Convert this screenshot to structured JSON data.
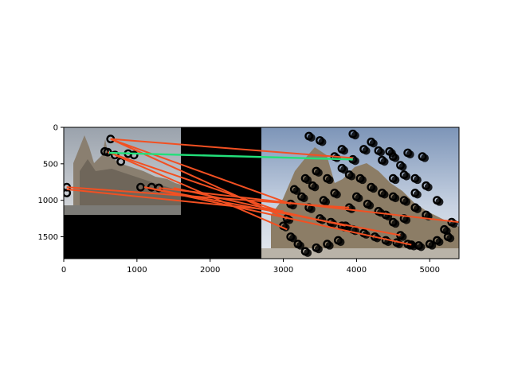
{
  "chart_data": {
    "type": "scatter",
    "description_kind": "feature-matching visualization over two stitched photos",
    "xlim": [
      0,
      5400
    ],
    "ylim": [
      1800,
      0
    ],
    "x_ticks": [
      "0",
      "1000",
      "2000",
      "3000",
      "4000",
      "5000"
    ],
    "y_ticks": [
      "0",
      "500",
      "1000",
      "1500"
    ],
    "x_tick_values": [
      0,
      1000,
      2000,
      3000,
      4000,
      5000
    ],
    "y_tick_values": [
      0,
      500,
      1000,
      1500
    ],
    "grid": false,
    "colors": {
      "match_line": "#f25022",
      "inlier_line": "#22e07a",
      "keypoint": "#000000",
      "separator": "#000000"
    },
    "left_image": {
      "x": [
        0,
        1600
      ],
      "y": [
        0,
        1200
      ]
    },
    "right_image": {
      "x": [
        2700,
        5400
      ],
      "y": [
        0,
        1800
      ]
    },
    "match_lines": [
      {
        "x1": 640,
        "y1": 160,
        "x2": 3950,
        "y2": 420
      },
      {
        "x1": 640,
        "y1": 160,
        "x2": 3050,
        "y2": 1250
      },
      {
        "x1": 640,
        "y1": 160,
        "x2": 3100,
        "y2": 1050
      },
      {
        "x1": 600,
        "y1": 340,
        "x2": 3100,
        "y2": 1200
      },
      {
        "x1": 700,
        "y1": 380,
        "x2": 3050,
        "y2": 1400
      },
      {
        "x1": 40,
        "y1": 820,
        "x2": 3900,
        "y2": 1100
      },
      {
        "x1": 40,
        "y1": 850,
        "x2": 3000,
        "y2": 1150
      },
      {
        "x1": 1100,
        "y1": 820,
        "x2": 4600,
        "y2": 1480
      },
      {
        "x1": 1100,
        "y1": 820,
        "x2": 4750,
        "y2": 1610
      },
      {
        "x1": 1300,
        "y1": 830,
        "x2": 5400,
        "y2": 1300
      },
      {
        "x1": 1500,
        "y1": 830,
        "x2": 3850,
        "y2": 1350
      }
    ],
    "inlier_lines": [
      {
        "x1": 620,
        "y1": 350,
        "x2": 3950,
        "y2": 440
      }
    ],
    "keypoints_left": [
      [
        640,
        160
      ],
      [
        600,
        340
      ],
      [
        700,
        380
      ],
      [
        780,
        470
      ],
      [
        960,
        380
      ],
      [
        1050,
        820
      ],
      [
        1200,
        820
      ],
      [
        1300,
        830
      ],
      [
        40,
        820
      ],
      [
        40,
        900
      ],
      [
        560,
        330
      ],
      [
        880,
        360
      ]
    ],
    "keypoints_right": [
      [
        3350,
        120
      ],
      [
        3500,
        180
      ],
      [
        3950,
        90
      ],
      [
        4100,
        300
      ],
      [
        4300,
        320
      ],
      [
        4450,
        330
      ],
      [
        4500,
        400
      ],
      [
        4600,
        520
      ],
      [
        4700,
        350
      ],
      [
        4900,
        400
      ],
      [
        3450,
        600
      ],
      [
        3600,
        700
      ],
      [
        3800,
        560
      ],
      [
        3900,
        650
      ],
      [
        4050,
        700
      ],
      [
        4200,
        820
      ],
      [
        4350,
        900
      ],
      [
        4500,
        950
      ],
      [
        4650,
        1000
      ],
      [
        4800,
        900
      ],
      [
        3150,
        850
      ],
      [
        3250,
        950
      ],
      [
        3350,
        1100
      ],
      [
        3500,
        1250
      ],
      [
        3650,
        1300
      ],
      [
        3800,
        1350
      ],
      [
        3950,
        1400
      ],
      [
        4100,
        1450
      ],
      [
        4250,
        1500
      ],
      [
        4400,
        1550
      ],
      [
        4550,
        1580
      ],
      [
        4700,
        1600
      ],
      [
        4850,
        1620
      ],
      [
        5000,
        1600
      ],
      [
        5100,
        1550
      ],
      [
        5250,
        1500
      ],
      [
        5300,
        1300
      ],
      [
        5200,
        1400
      ],
      [
        3000,
        1350
      ],
      [
        3100,
        1500
      ],
      [
        3200,
        1600
      ],
      [
        3300,
        1700
      ],
      [
        3450,
        1650
      ],
      [
        3600,
        1600
      ],
      [
        3750,
        1550
      ],
      [
        3050,
        1250
      ],
      [
        3100,
        1050
      ],
      [
        3900,
        1100
      ],
      [
        4600,
        1480
      ],
      [
        4750,
        1610
      ],
      [
        3850,
        1350
      ],
      [
        3950,
        440
      ],
      [
        4400,
        1200
      ],
      [
        4500,
        1300
      ],
      [
        4650,
        1250
      ],
      [
        4800,
        1100
      ],
      [
        4950,
        1200
      ],
      [
        5100,
        1000
      ],
      [
        4000,
        950
      ],
      [
        4150,
        1050
      ],
      [
        4300,
        1150
      ],
      [
        3700,
        900
      ],
      [
        3550,
        1000
      ],
      [
        3400,
        800
      ],
      [
        3300,
        700
      ],
      [
        3700,
        400
      ],
      [
        3800,
        300
      ],
      [
        4200,
        200
      ],
      [
        4350,
        450
      ],
      [
        4500,
        700
      ],
      [
        4650,
        650
      ],
      [
        4800,
        700
      ],
      [
        4950,
        800
      ]
    ]
  }
}
